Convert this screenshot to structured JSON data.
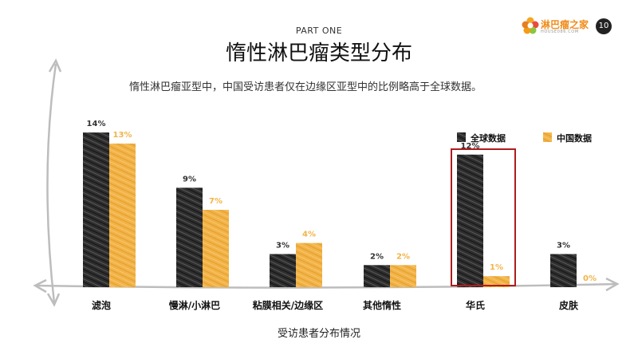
{
  "header": {
    "part": "PART ONE",
    "title": "惰性淋巴瘤类型分布",
    "subtitle": "惰性淋巴瘤亚型中，中国受访患者仅在边缘区亚型中的比例略高于全球数据。"
  },
  "logo": {
    "name": "淋巴瘤之家",
    "sub": "HOUSE086.COM",
    "color": "#f08c1a"
  },
  "page_number": "10",
  "colors": {
    "global": "#333333",
    "china": "#f2b347",
    "highlight": "#b01c1c",
    "axis": "#bdbdbd"
  },
  "chart_data": {
    "type": "bar",
    "categories": [
      "滤泡",
      "慢淋/小淋巴",
      "粘膜相关/边缘区",
      "其他惰性",
      "华氏",
      "皮肤"
    ],
    "series": [
      {
        "name": "全球数据",
        "values": [
          14,
          9,
          3,
          2,
          12,
          3
        ],
        "labels": [
          "14%",
          "9%",
          "3%",
          "2%",
          "12%",
          "3%"
        ]
      },
      {
        "name": "中国数据",
        "values": [
          13,
          7,
          4,
          2,
          1,
          0
        ],
        "labels": [
          "13%",
          "7%",
          "4%",
          "2%",
          "1%",
          "0%"
        ]
      }
    ],
    "xlabel": "受访患者分布情况",
    "ylim": [
      0,
      15
    ],
    "highlight_category": "华氏",
    "legend_position": "top-right"
  }
}
